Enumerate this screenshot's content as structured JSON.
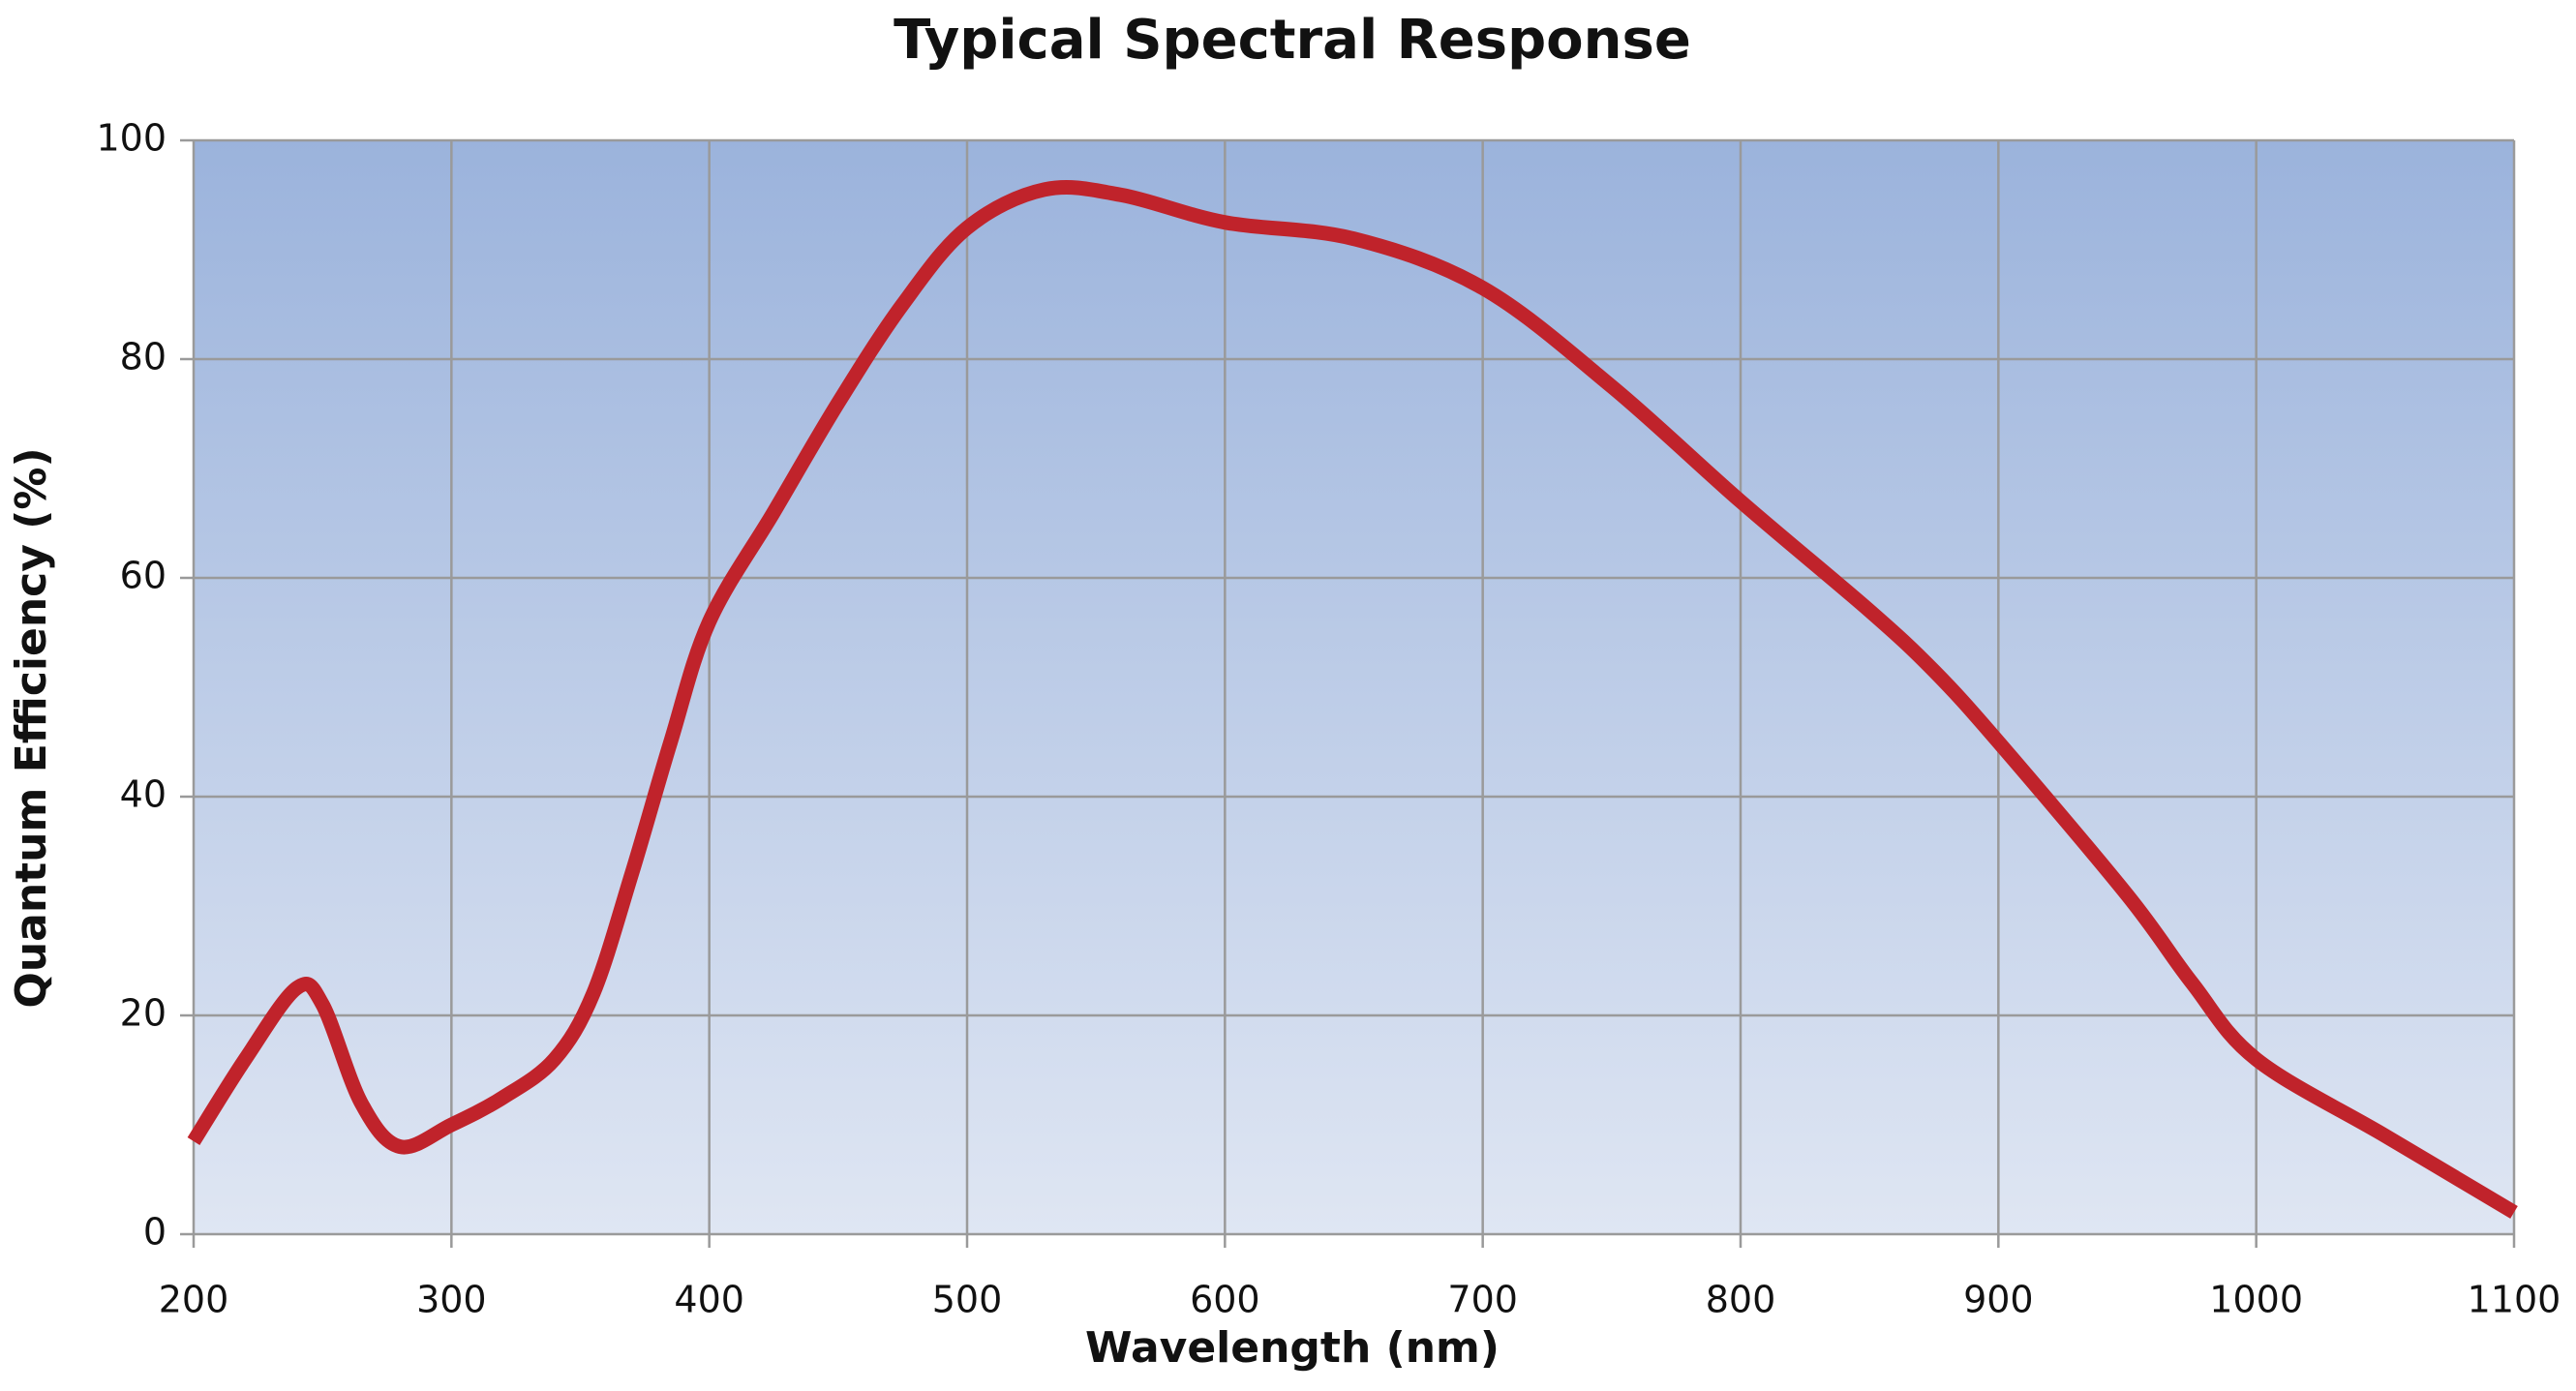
{
  "chart_data": {
    "type": "line",
    "title": "Typical Spectral Response",
    "x_label": "Wavelength (nm)",
    "y_label": "Quantum Efficiency (%)",
    "x": [
      200,
      220,
      240,
      250,
      265,
      280,
      300,
      320,
      340,
      355,
      370,
      385,
      400,
      425,
      450,
      475,
      500,
      530,
      560,
      600,
      650,
      700,
      750,
      800,
      850,
      875,
      900,
      950,
      975,
      1000,
      1050,
      1100
    ],
    "series": [
      {
        "name": "Quantum Efficiency",
        "color": "#c0232b",
        "values": [
          8.5,
          16,
          22.5,
          21,
          12,
          8,
          10,
          12.5,
          16,
          22,
          33,
          45,
          56,
          66,
          76,
          85,
          92,
          95.5,
          95,
          92.5,
          91,
          86.5,
          77.5,
          67,
          57,
          51.5,
          45,
          31,
          23,
          16,
          9,
          2
        ]
      }
    ],
    "xlim": [
      200,
      1100
    ],
    "xticks": [
      200,
      300,
      400,
      500,
      600,
      700,
      800,
      900,
      1000,
      1100
    ],
    "ylim": [
      0,
      100
    ],
    "yticks": [
      0,
      20,
      40,
      60,
      80,
      100
    ],
    "grid": true
  }
}
